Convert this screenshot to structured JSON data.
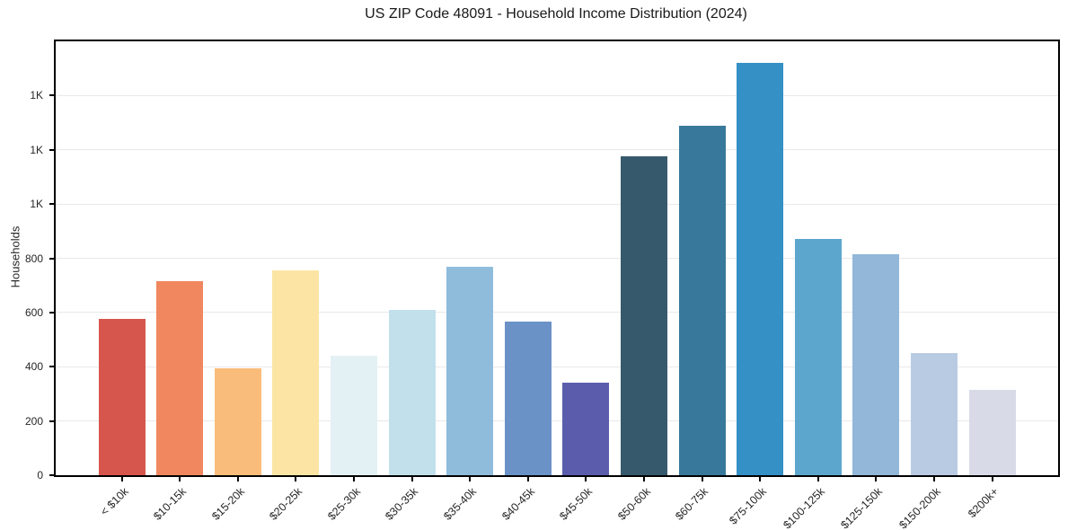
{
  "figure": {
    "title": "US ZIP Code 48091 - Household Income Distribution (2024)"
  },
  "chart_data": {
    "type": "bar",
    "title": "US ZIP Code 48091 - Household Income Distribution (2024)",
    "xlabel": "",
    "ylabel": "Households",
    "categories": [
      "< $10k",
      "$10-15k",
      "$15-20k",
      "$20-25k",
      "$25-30k",
      "$30-35k",
      "$35-40k",
      "$40-45k",
      "$45-50k",
      "$50-60k",
      "$60-75k",
      "$75-100k",
      "$100-125k",
      "$125-150k",
      "$150-200k",
      "$200k+"
    ],
    "values": [
      575,
      715,
      395,
      755,
      440,
      610,
      770,
      565,
      340,
      1175,
      1290,
      1520,
      870,
      815,
      450,
      315
    ],
    "bar_colors": [
      "#d6564e",
      "#f0875f",
      "#fabc7b",
      "#fce5a4",
      "#e4f1f4",
      "#c2e0ec",
      "#90bcdc",
      "#6b92c7",
      "#5b5dac",
      "#365a6c",
      "#38799b",
      "#3590c6",
      "#5ca6cd",
      "#92b7d9",
      "#b9cbe3",
      "#d8dae8"
    ],
    "ylim": [
      0,
      1600
    ],
    "yticks": [
      {
        "value": 0,
        "label": "0"
      },
      {
        "value": 200,
        "label": "200"
      },
      {
        "value": 400,
        "label": "400"
      },
      {
        "value": 600,
        "label": "600"
      },
      {
        "value": 800,
        "label": "800"
      },
      {
        "value": 1000,
        "label": "1K"
      },
      {
        "value": 1200,
        "label": "1K"
      },
      {
        "value": 1400,
        "label": "1K"
      }
    ],
    "grid": "horizontal",
    "legend_position": "none",
    "colors": {
      "background": "#ffffff",
      "axis": "#000000",
      "gridline": "#e9e9e9",
      "text": "#262626"
    }
  }
}
